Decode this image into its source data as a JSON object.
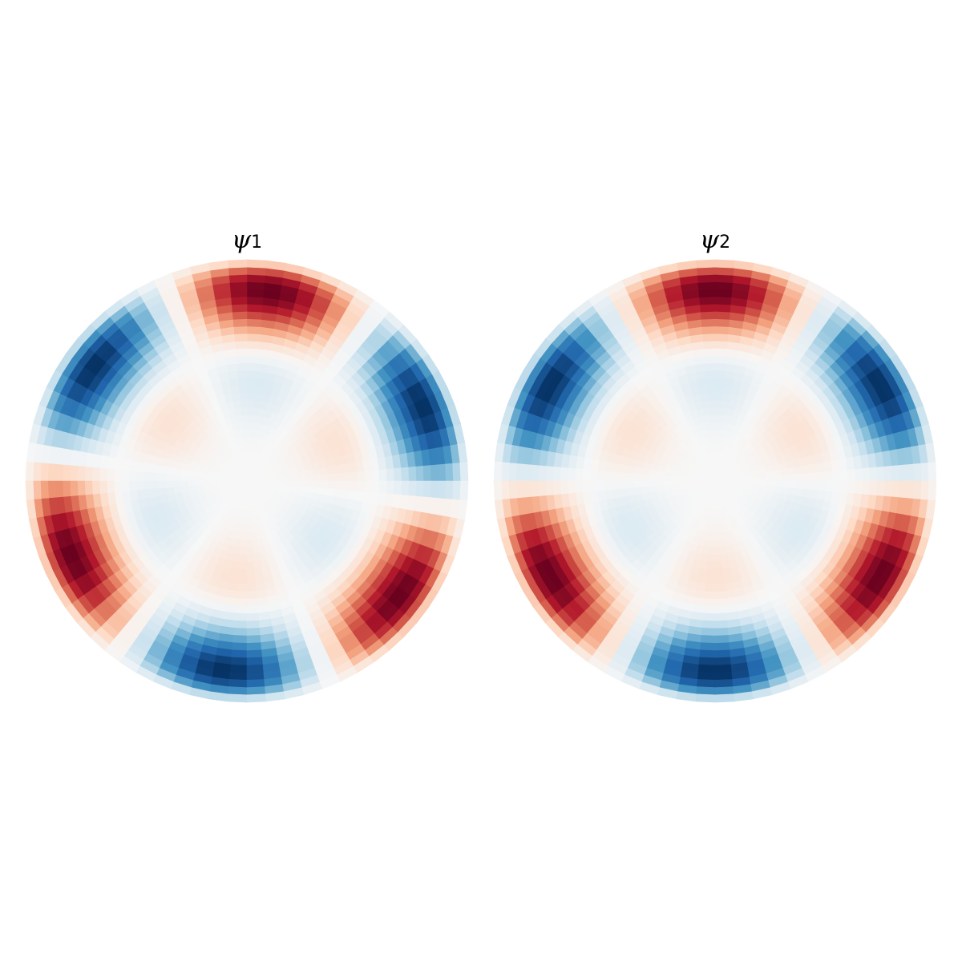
{
  "chart_data": [
    {
      "type": "heatmap",
      "projection": "polar",
      "title": {
        "symbol": "ψ",
        "subscript": "1"
      },
      "field": {
        "azimuthal_order": 3,
        "radial_nodes": 1,
        "phase_deg": 20
      },
      "r_range": [
        0,
        1
      ],
      "colormap": "RdBu_r",
      "color_range": [
        -1,
        1
      ],
      "grid": false,
      "axes": "off"
    },
    {
      "type": "heatmap",
      "projection": "polar",
      "title": {
        "symbol": "ψ",
        "subscript": "2"
      },
      "field": {
        "azimuthal_order": 3,
        "radial_nodes": 1,
        "phase_deg": 0
      },
      "r_range": [
        0,
        1
      ],
      "colormap": "RdBu_r",
      "color_range": [
        -1,
        1
      ],
      "grid": false,
      "axes": "off"
    }
  ],
  "colors": {
    "negative_extreme": "#053061",
    "neutral": "#f7f7f7",
    "positive_extreme": "#67001f"
  }
}
